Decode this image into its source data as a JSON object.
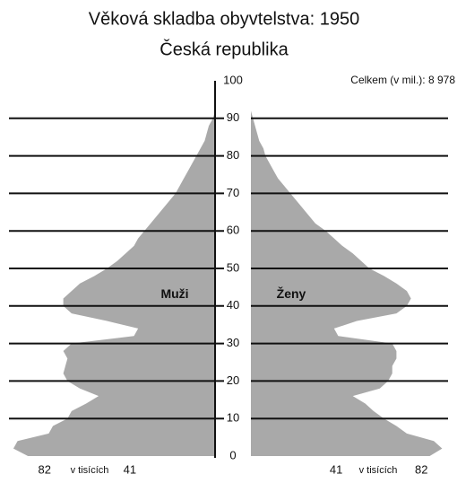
{
  "chart_data": {
    "type": "pyramid",
    "title": "Věková skladba obyvtelstva: 1950",
    "subtitle": "Česká republika",
    "annotation": "Celkem (v mil.): 8 978",
    "x_label": "v tisících",
    "color": "#a9a9a9",
    "ages": [
      0,
      2,
      4,
      6,
      8,
      10,
      12,
      14,
      16,
      18,
      20,
      22,
      24,
      26,
      28,
      30,
      32,
      34,
      36,
      38,
      40,
      42,
      44,
      46,
      48,
      50,
      52,
      54,
      56,
      58,
      60,
      62,
      64,
      66,
      68,
      70,
      72,
      74,
      76,
      78,
      80,
      82,
      84,
      86,
      88,
      90,
      92,
      94
    ],
    "series": [
      {
        "name": "Muži",
        "side": "left",
        "values": [
          90,
          97,
          95,
          80,
          78,
          71,
          69,
          62,
          56,
          65,
          71,
          73,
          72,
          71,
          73,
          69,
          39,
          37,
          52,
          69,
          73,
          73,
          69,
          65,
          58,
          52,
          47,
          43,
          39,
          37,
          34,
          31,
          28,
          25,
          22,
          19,
          17,
          15,
          13,
          11,
          9,
          7,
          5,
          4,
          3,
          1,
          0,
          0
        ]
      },
      {
        "name": "Ženy",
        "side": "right",
        "values": [
          86,
          92,
          88,
          75,
          70,
          64,
          59,
          55,
          49,
          62,
          66,
          68,
          68,
          70,
          70,
          68,
          42,
          40,
          51,
          70,
          75,
          77,
          75,
          70,
          64,
          57,
          53,
          49,
          44,
          40,
          36,
          31,
          28,
          25,
          22,
          19,
          16,
          13,
          11,
          9,
          7,
          6,
          4,
          3,
          2,
          1,
          0,
          0
        ]
      }
    ],
    "xlim": [
      0,
      100
    ],
    "xticks": [
      41,
      82
    ],
    "ylim": [
      0,
      100
    ],
    "yticks": [
      0,
      10,
      20,
      30,
      40,
      50,
      60,
      70,
      80,
      90,
      100
    ],
    "grid": true
  }
}
